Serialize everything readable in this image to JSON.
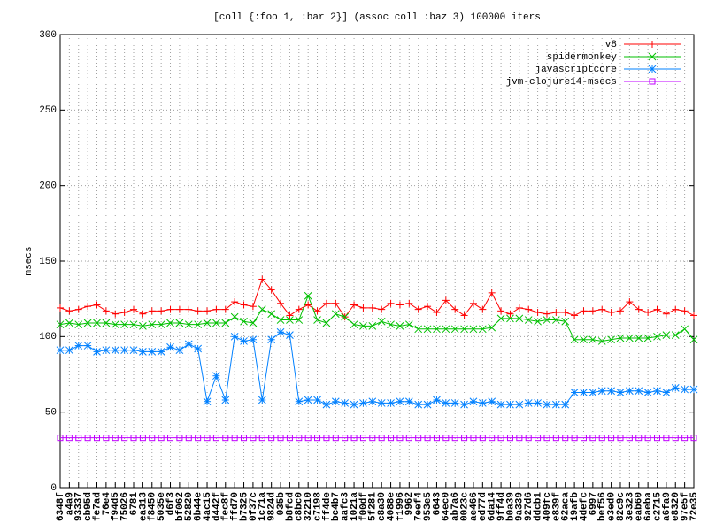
{
  "chart_data": {
    "type": "line",
    "title": "[coll {:foo 1, :bar 2}] (assoc coll :baz 3) 100000 iters",
    "y_label": "msecs",
    "categories": [
      "6348f",
      "a4a9",
      "93337",
      "cb95d",
      "fe7ad",
      "76e4",
      "f94d5",
      "75026",
      "6781",
      "ea313",
      "f8450",
      "5035e",
      "d6f3",
      "bf062",
      "52820",
      "6b44e",
      "4ac15",
      "d442f",
      "fec8f",
      "ffd70",
      "b7325",
      "0f37c",
      "1c71a",
      "9824d",
      "035b",
      "b8fcd",
      "c8bc0",
      "32210",
      "c7198",
      "ff4de",
      "bc4b7",
      "aafc3",
      "1021a",
      "f00df",
      "5f281",
      "c8a30",
      "4088e",
      "f1996",
      "9962",
      "7eef4",
      "953e5",
      "6643",
      "64ec0",
      "ab7a6",
      "0023c",
      "ae466",
      "ed77d",
      "6da14",
      "9ff4d",
      "b0a39",
      "9a339",
      "927d6",
      "ddcb1",
      "409fc",
      "e839f",
      "62aca",
      "19afb",
      "4defc",
      "6997",
      "bef56",
      "e3ed0",
      "82c9c",
      "3e323",
      "eab60",
      "6aeba",
      "c2715",
      "a6fa9",
      "e8320",
      "97e5f",
      "72e35"
    ],
    "series": [
      {
        "name": "v8",
        "color": "#ff0000",
        "values": [
          119,
          117,
          118,
          120,
          121,
          117,
          115,
          116,
          118,
          115,
          117,
          117,
          118,
          118,
          118,
          117,
          117,
          118,
          118,
          123,
          121,
          120,
          138,
          131,
          122,
          114,
          118,
          121,
          117,
          122,
          122,
          113,
          121,
          119,
          119,
          118,
          122,
          121,
          122,
          118,
          120,
          116,
          124,
          118,
          114,
          122,
          118,
          129,
          117,
          115,
          119,
          118,
          116,
          115,
          116,
          116,
          114,
          117,
          117,
          118,
          116,
          117,
          123,
          118,
          116,
          118,
          115,
          118,
          117,
          114
        ]
      },
      {
        "name": "spidermonkey",
        "color": "#00c000",
        "values": [
          108,
          109,
          108,
          109,
          109,
          109,
          108,
          108,
          108,
          107,
          108,
          108,
          109,
          109,
          108,
          108,
          109,
          109,
          109,
          113,
          110,
          109,
          118,
          115,
          111,
          111,
          111,
          127,
          111,
          109,
          115,
          113,
          108,
          107,
          107,
          110,
          108,
          107,
          108,
          105,
          105,
          105,
          105,
          105,
          105,
          105,
          105,
          106,
          112,
          112,
          112,
          111,
          110,
          111,
          111,
          110,
          98,
          98,
          98,
          97,
          98,
          99,
          99,
          99,
          99,
          100,
          101,
          101,
          105,
          98
        ]
      },
      {
        "name": "javascriptcore",
        "color": "#0080ff",
        "values": [
          91,
          91,
          94,
          94,
          90,
          91,
          91,
          91,
          91,
          90,
          90,
          90,
          93,
          91,
          95,
          92,
          57,
          74,
          58,
          100,
          97,
          98,
          58,
          98,
          103,
          101,
          57,
          58,
          58,
          55,
          57,
          56,
          55,
          56,
          57,
          56,
          56,
          57,
          57,
          55,
          55,
          58,
          56,
          56,
          55,
          57,
          56,
          57,
          55,
          55,
          55,
          56,
          56,
          55,
          55,
          55,
          63,
          63,
          63,
          64,
          64,
          63,
          64,
          64,
          63,
          64,
          63,
          66,
          65,
          65
        ]
      },
      {
        "name": "jvm-clojure14-msecs",
        "color": "#c000ff",
        "values": [
          33,
          33,
          33,
          33,
          33,
          33,
          33,
          33,
          33,
          33,
          33,
          33,
          33,
          33,
          33,
          33,
          33,
          33,
          33,
          33,
          33,
          33,
          33,
          33,
          33,
          33,
          33,
          33,
          33,
          33,
          33,
          33,
          33,
          33,
          33,
          33,
          33,
          33,
          33,
          33,
          33,
          33,
          33,
          33,
          33,
          33,
          33,
          33,
          33,
          33,
          33,
          33,
          33,
          33,
          33,
          33,
          33,
          33,
          33,
          33,
          33,
          33,
          33,
          33,
          33,
          33,
          33,
          33,
          33,
          33
        ]
      }
    ],
    "ylim": [
      0,
      300
    ],
    "yticks": [
      0,
      50,
      100,
      150,
      200,
      250,
      300
    ],
    "grid": true,
    "legend": "top-right"
  }
}
